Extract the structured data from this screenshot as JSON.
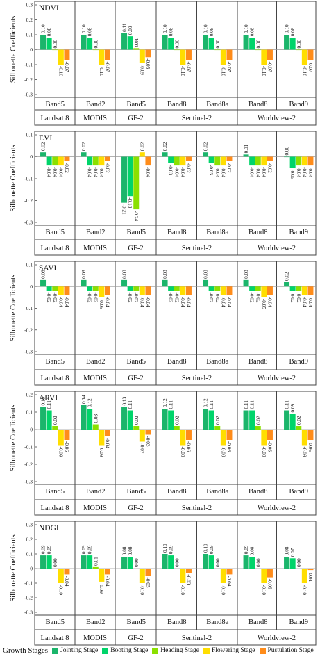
{
  "colors": [
    "#1bb56b",
    "#00d46a",
    "#8be000",
    "#ffde00",
    "#ff8c1a"
  ],
  "legend": {
    "title": "Growth Stages",
    "items": [
      "Jointing Stage",
      "Booting Stage",
      "Heading Stage",
      "Flowering Stage",
      "Pustulation Stage"
    ]
  },
  "groups": [
    {
      "bands": [
        "Band5"
      ],
      "sensor": "Landsat 8"
    },
    {
      "bands": [
        "Band2"
      ],
      "sensor": "MODIS"
    },
    {
      "bands": [
        "Band5"
      ],
      "sensor": "GF-2"
    },
    {
      "bands": [
        "Band8",
        "Band8a"
      ],
      "sensor": "Sentinel-2"
    },
    {
      "bands": [
        "Band8",
        "Band9"
      ],
      "sensor": "Worldview-2"
    }
  ],
  "chart_data": [
    {
      "type": "bar",
      "title": "NDVI",
      "ylabel": "Silhouette Coefficients",
      "ylim": [
        -0.3,
        0.3
      ],
      "yticks": [
        0.3,
        0.2,
        0.1,
        0.0,
        -0.1,
        -0.2,
        -0.3
      ],
      "categories": [
        "Band5",
        "Band2",
        "Band5",
        "Band8",
        "Band8a",
        "Band8",
        "Band9"
      ],
      "series": [
        {
          "name": "Jointing Stage",
          "values": [
            0.1,
            0.1,
            0.11,
            0.1,
            0.1,
            0.1,
            0.1
          ]
        },
        {
          "name": "Booting Stage",
          "values": [
            0.08,
            0.08,
            0.09,
            0.08,
            0.08,
            0.08,
            0.08
          ]
        },
        {
          "name": "Heading Stage",
          "values": [
            0.0,
            0.0,
            0.01,
            0.0,
            0.0,
            0.0,
            0.0
          ]
        },
        {
          "name": "Flowering Stage",
          "values": [
            -0.1,
            -0.1,
            -0.09,
            -0.1,
            -0.1,
            -0.1,
            -0.1
          ]
        },
        {
          "name": "Pustulation Stage",
          "values": [
            -0.07,
            -0.07,
            -0.05,
            -0.07,
            -0.07,
            -0.07,
            -0.07
          ]
        }
      ]
    },
    {
      "type": "bar",
      "title": "EVI",
      "ylabel": "Silhouette Coefficients",
      "ylim": [
        -0.3,
        0.1
      ],
      "yticks": [
        0.1,
        0.0,
        -0.1,
        -0.2,
        -0.3
      ],
      "categories": [
        "Band5",
        "Band2",
        "Band5",
        "Band8",
        "Band8a",
        "Band8",
        "Band9"
      ],
      "series": [
        {
          "name": "Jointing Stage",
          "values": [
            0.02,
            0.02,
            -0.21,
            0.02,
            0.02,
            0.01,
            0.0
          ]
        },
        {
          "name": "Booting Stage",
          "values": [
            -0.04,
            -0.04,
            -0.18,
            -0.03,
            -0.03,
            -0.04,
            -0.05
          ]
        },
        {
          "name": "Heading Stage",
          "values": [
            -0.04,
            -0.04,
            -0.24,
            -0.04,
            -0.04,
            -0.04,
            -0.04
          ]
        },
        {
          "name": "Flowering Stage",
          "values": [
            -0.04,
            -0.04,
            0.02,
            -0.04,
            -0.04,
            -0.04,
            -0.04
          ]
        },
        {
          "name": "Pustulation Stage",
          "values": [
            -0.02,
            -0.02,
            -0.04,
            -0.02,
            -0.02,
            -0.02,
            -0.04
          ]
        }
      ]
    },
    {
      "type": "bar",
      "title": "SAVI",
      "ylabel": "Silhouette Coefficients",
      "ylim": [
        -0.3,
        0.1
      ],
      "yticks": [
        0.1,
        0.0,
        -0.1,
        -0.2,
        -0.3
      ],
      "categories": [
        "Band5",
        "Band2",
        "Band5",
        "Band8",
        "Band8a",
        "Band8",
        "Band9"
      ],
      "series": [
        {
          "name": "Jointing Stage",
          "values": [
            0.03,
            0.03,
            0.03,
            0.03,
            0.03,
            0.03,
            0.02
          ]
        },
        {
          "name": "Booting Stage",
          "values": [
            -0.02,
            -0.02,
            -0.02,
            -0.02,
            -0.02,
            -0.02,
            -0.02
          ]
        },
        {
          "name": "Heading Stage",
          "values": [
            -0.02,
            -0.02,
            -0.02,
            -0.02,
            -0.02,
            -0.02,
            -0.02
          ]
        },
        {
          "name": "Flowering Stage",
          "values": [
            -0.04,
            -0.05,
            -0.04,
            -0.04,
            -0.04,
            -0.05,
            -0.04
          ]
        },
        {
          "name": "Pustulation Stage",
          "values": [
            -0.04,
            -0.04,
            -0.04,
            -0.04,
            -0.04,
            -0.04,
            -0.04
          ]
        }
      ]
    },
    {
      "type": "bar",
      "title": "ARVI",
      "ylabel": "Silhouette Coefficients",
      "ylim": [
        -0.3,
        0.2
      ],
      "yticks": [
        0.2,
        0.1,
        0.0,
        -0.1,
        -0.2,
        -0.3
      ],
      "categories": [
        "Band5",
        "Band2",
        "Band5",
        "Band8",
        "Band8a",
        "Band8",
        "Band9"
      ],
      "series": [
        {
          "name": "Jointing Stage",
          "values": [
            0.13,
            0.14,
            0.13,
            0.12,
            0.12,
            0.11,
            0.11
          ]
        },
        {
          "name": "Booting Stage",
          "values": [
            0.11,
            0.12,
            0.11,
            0.11,
            0.11,
            0.11,
            0.09
          ]
        },
        {
          "name": "Heading Stage",
          "values": [
            0.02,
            0.03,
            0.02,
            0.02,
            0.02,
            0.02,
            0.02
          ]
        },
        {
          "name": "Flowering Stage",
          "values": [
            -0.09,
            -0.09,
            -0.07,
            -0.09,
            -0.09,
            -0.09,
            -0.09
          ]
        },
        {
          "name": "Pustulation Stage",
          "values": [
            -0.06,
            -0.04,
            -0.03,
            -0.06,
            -0.06,
            -0.06,
            -0.06
          ]
        }
      ]
    },
    {
      "type": "bar",
      "title": "NDGI",
      "ylabel": "Silhouette Coefficients",
      "ylim": [
        -0.3,
        0.3
      ],
      "yticks": [
        0.3,
        0.2,
        0.1,
        0.0,
        -0.1,
        -0.2,
        -0.3
      ],
      "categories": [
        "Band5",
        "Band2",
        "Band5",
        "Band8",
        "Band8a",
        "Band8",
        "Band9"
      ],
      "series": [
        {
          "name": "Jointing Stage",
          "values": [
            0.09,
            0.09,
            0.08,
            0.1,
            0.1,
            0.09,
            0.08
          ]
        },
        {
          "name": "Booting Stage",
          "values": [
            0.09,
            0.09,
            0.08,
            0.09,
            0.09,
            0.08,
            0.07
          ]
        },
        {
          "name": "Heading Stage",
          "values": [
            0.0,
            0.01,
            0.0,
            0.0,
            0.0,
            0.0,
            0.0
          ]
        },
        {
          "name": "Flowering Stage",
          "values": [
            -0.1,
            -0.09,
            -0.1,
            -0.1,
            -0.1,
            -0.1,
            -0.1
          ]
        },
        {
          "name": "Pustulation Stage",
          "values": [
            -0.04,
            -0.04,
            -0.05,
            -0.03,
            -0.04,
            -0.06,
            -0.01
          ]
        }
      ]
    }
  ]
}
